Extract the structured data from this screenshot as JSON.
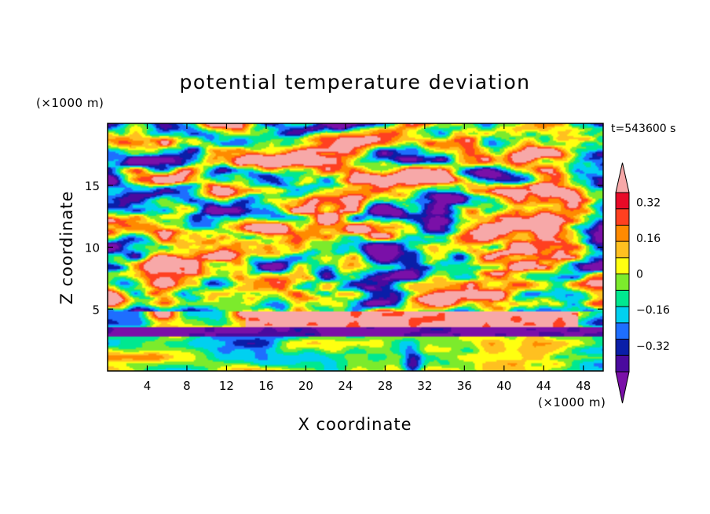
{
  "chart_data": {
    "type": "heatmap",
    "title": "potential temperature deviation",
    "xlabel": "X coordinate",
    "ylabel": "Z coordinate",
    "x_unit": "(×1000 m)",
    "y_unit": "(×1000 m)",
    "time_label": "t=543600 s",
    "xlim": [
      0,
      50
    ],
    "ylim": [
      0,
      20
    ],
    "x_ticks": [
      4,
      8,
      12,
      16,
      20,
      24,
      28,
      32,
      36,
      40,
      44,
      48
    ],
    "y_ticks": [
      5,
      10,
      15
    ],
    "colorbar": {
      "levels": [
        -0.48,
        -0.4,
        -0.32,
        -0.24,
        -0.16,
        -0.08,
        0,
        0.08,
        0.16,
        0.24,
        0.32,
        0.4,
        0.48
      ],
      "labeled_levels": [
        -0.32,
        -0.16,
        0,
        0.16,
        0.32
      ],
      "labels": [
        "−0.32",
        "−0.16",
        "0",
        "0.16",
        "0.32"
      ],
      "colors": [
        "#7A10A8",
        "#4A0A9E",
        "#0A1EA8",
        "#1E6EFF",
        "#00D0F0",
        "#00E890",
        "#7CEB2C",
        "#FFFF10",
        "#FFC020",
        "#FF8A00",
        "#FF4020",
        "#E80A28",
        "#F7A8A8"
      ],
      "extend": "both"
    },
    "features": {
      "warm_layer_z_range": [
        3.5,
        5.2
      ],
      "cold_layer_z_range": [
        2.8,
        3.6
      ],
      "turbulent_region_z_range": [
        5,
        20
      ],
      "lower_layer_z_range": [
        0,
        3
      ]
    }
  }
}
